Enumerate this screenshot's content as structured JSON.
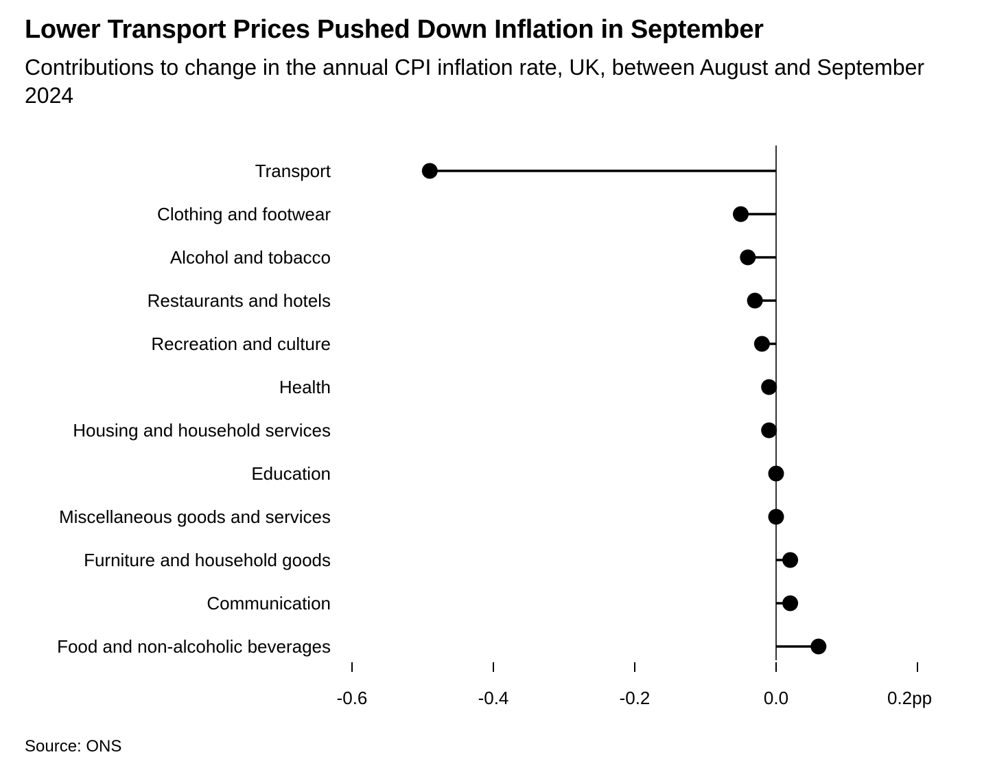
{
  "title": "Lower Transport Prices Pushed Down Inflation in September",
  "subtitle": "Contributions to change in the annual CPI inflation rate, UK, between August and September 2024",
  "source": "Source: ONS",
  "chart_data": {
    "type": "lollipop",
    "categories": [
      "Transport",
      "Clothing and footwear",
      "Alcohol and tobacco",
      "Restaurants and hotels",
      "Recreation and culture",
      "Health",
      "Housing and household services",
      "Education",
      "Miscellaneous goods and services",
      "Furniture and household goods",
      "Communication",
      "Food and non-alcoholic beverages"
    ],
    "values": [
      -0.49,
      -0.05,
      -0.04,
      -0.03,
      -0.02,
      -0.01,
      -0.01,
      0.0,
      0.0,
      0.02,
      0.02,
      0.06
    ],
    "xlim": [
      -0.6,
      0.2
    ],
    "xticks": [
      -0.6,
      -0.4,
      -0.2,
      0.0,
      0.2
    ],
    "xtick_labels": [
      "-0.6",
      "-0.4",
      "-0.2",
      "0.0",
      "0.2pp"
    ],
    "grid": false,
    "color": "#000000"
  }
}
